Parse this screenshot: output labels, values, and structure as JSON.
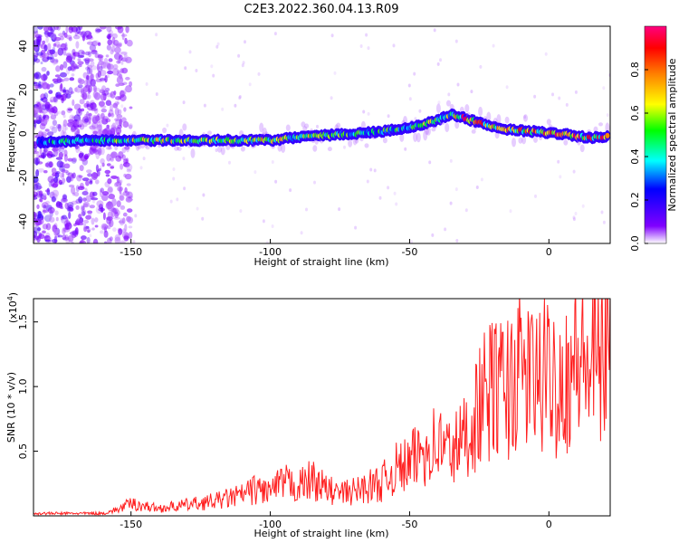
{
  "chart_data": [
    {
      "type": "heatmap",
      "title": "C2E3.2022.360.04.13.R09",
      "xlabel": "Height of straight line (km)",
      "ylabel": "Frequency (Hz)",
      "xlim": [
        -185,
        22
      ],
      "ylim": [
        -50,
        49
      ],
      "xticks": [
        -150,
        -100,
        -50,
        0
      ],
      "yticks": [
        -40,
        -20,
        0,
        20,
        40
      ],
      "colorbar": {
        "label": "Normalized spectral amplitude",
        "range": [
          0.0,
          1.0
        ],
        "ticks": [
          0.0,
          0.2,
          0.4,
          0.6,
          0.8
        ],
        "colormap": [
          "#ffffff",
          "#8000ff",
          "#0000ff",
          "#00ffff",
          "#00ff00",
          "#ffff00",
          "#ff8000",
          "#ff0000",
          "#ff0080"
        ]
      },
      "ridge": {
        "x": [
          -183,
          -165,
          -150,
          -130,
          -110,
          -100,
          -85,
          -70,
          -60,
          -50,
          -40,
          -35,
          -30,
          -25,
          -15,
          -5,
          5,
          15,
          21
        ],
        "frequency": [
          -4,
          -3,
          -3,
          -3,
          -3,
          -3,
          -1,
          0,
          1,
          3,
          6,
          9,
          7,
          5,
          2,
          1,
          0,
          -2,
          -1
        ],
        "amplitude": [
          0.4,
          0.5,
          0.6,
          0.6,
          0.6,
          0.7,
          0.6,
          0.5,
          0.5,
          0.5,
          0.6,
          0.6,
          0.9,
          0.8,
          0.8,
          0.8,
          0.9,
          0.8,
          0.8
        ]
      },
      "noise_region": {
        "x": [
          -185,
          -158
        ],
        "amplitude_max": 0.3
      }
    },
    {
      "type": "line",
      "xlabel": "Height of straight line (km)",
      "ylabel": "SNR (10 * v/v)",
      "yscale_label": "(x10",
      "yscale_exponent": "4",
      "y_unit_multiplier": 10000,
      "xlim": [
        -185,
        22
      ],
      "ylim": [
        0.0,
        1.68
      ],
      "xticks": [
        -150,
        -100,
        -50,
        0
      ],
      "yticks": [
        0.5,
        1.0,
        1.5
      ],
      "color": "#ff2020",
      "series": [
        {
          "name": "SNR",
          "x": [
            -185,
            -160,
            -155,
            -150,
            -140,
            -130,
            -120,
            -110,
            -105,
            -100,
            -95,
            -90,
            -85,
            -80,
            -75,
            -70,
            -65,
            -60,
            -55,
            -50,
            -45,
            -40,
            -35,
            -30,
            -25,
            -20,
            -15,
            -10,
            -5,
            0,
            5,
            10,
            15,
            20,
            22
          ],
          "values": [
            0.02,
            0.02,
            0.05,
            0.1,
            0.06,
            0.09,
            0.12,
            0.17,
            0.22,
            0.2,
            0.27,
            0.24,
            0.3,
            0.22,
            0.18,
            0.2,
            0.24,
            0.27,
            0.38,
            0.42,
            0.55,
            0.6,
            0.52,
            0.65,
            0.9,
            1.05,
            1.05,
            1.2,
            1.1,
            1.15,
            1.1,
            1.3,
            1.2,
            1.4,
            1.4
          ]
        }
      ]
    }
  ]
}
